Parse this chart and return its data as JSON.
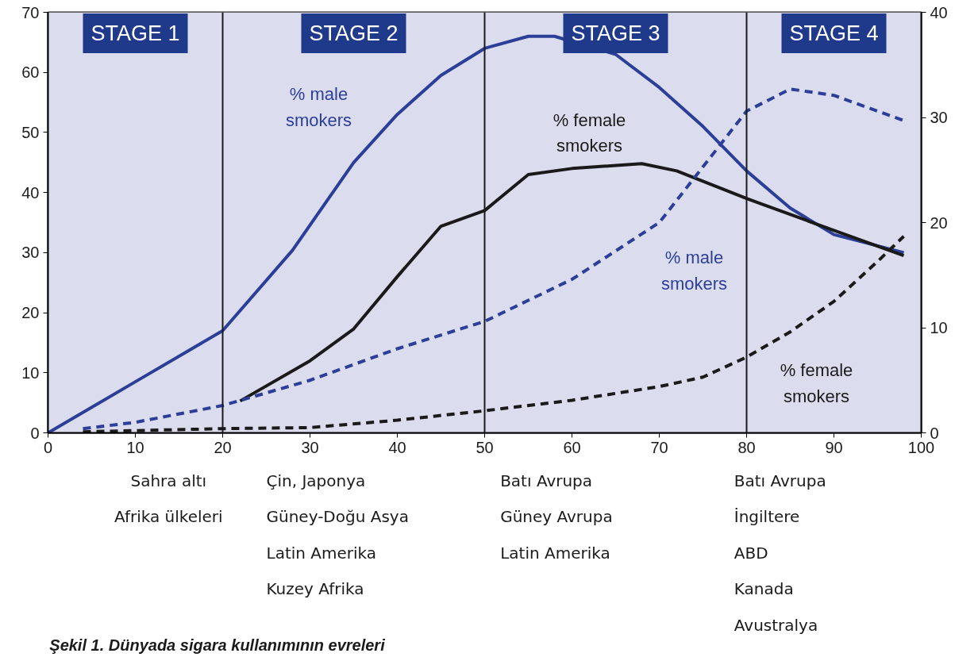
{
  "chart_data": {
    "type": "line",
    "title": "Şekil 1. Dünyada sigara kullanımının evreleri",
    "xlim": [
      0,
      100
    ],
    "xticks": [
      0,
      10,
      20,
      30,
      40,
      50,
      60,
      70,
      80,
      90,
      100
    ],
    "ylim": [
      0,
      70
    ],
    "yticks": [
      0,
      10,
      20,
      30,
      40,
      50,
      60,
      70
    ],
    "y2lim": [
      0,
      40
    ],
    "y2ticks": [
      0,
      10,
      20,
      30,
      40
    ],
    "grid": false,
    "marker": "none",
    "series": [
      {
        "name": "% male\nsmokers",
        "color": "#2b3f98",
        "line_style": "solid",
        "x": [
          0,
          10,
          20,
          28,
          35,
          40,
          45,
          50,
          55,
          58,
          65,
          70,
          75,
          80,
          85,
          90,
          98
        ],
        "values": [
          0,
          8.5,
          17,
          30.4,
          45,
          53,
          59.5,
          64,
          66,
          66,
          63,
          57.5,
          51,
          43.6,
          37.4,
          33,
          30
        ]
      },
      {
        "name": "% female\nsmokers",
        "color": "#1a1a1a",
        "line_style": "solid",
        "x": [
          22,
          30,
          35,
          40,
          45,
          50,
          55,
          60,
          68,
          72,
          80,
          90,
          98
        ],
        "values": [
          5.3,
          12,
          17.3,
          26,
          34.4,
          37,
          43,
          44,
          44.8,
          43.6,
          39,
          33.7,
          29.5
        ]
      },
      {
        "name": "% male\nsmokers",
        "color": "#2b3f98",
        "line_style": "dashed",
        "axis": "y2",
        "x": [
          4,
          10,
          20,
          30,
          40,
          50,
          60,
          70,
          75,
          80,
          85,
          90,
          98
        ],
        "values": [
          0.4,
          1,
          2.6,
          5,
          8,
          10.6,
          14.6,
          20,
          25.3,
          30.6,
          32.7,
          32.1,
          29.7
        ]
      },
      {
        "name": "% female\nsmokers",
        "color": "#1a1a1a",
        "line_style": "dashed",
        "axis": "y2",
        "x": [
          4,
          20,
          30,
          40,
          50,
          60,
          70,
          75,
          80,
          85,
          90,
          95,
          98
        ],
        "values": [
          0.1,
          0.4,
          0.5,
          1.2,
          2.1,
          3.1,
          4.4,
          5.3,
          7.2,
          9.6,
          12.5,
          16.3,
          18.7
        ]
      }
    ],
    "bands": [
      {
        "axis": "x",
        "from": 0,
        "to": 20,
        "label": "STAGE 1",
        "color": "#dcdcef"
      },
      {
        "axis": "x",
        "from": 20,
        "to": 50,
        "label": "STAGE 2",
        "color": "#dcdcef"
      },
      {
        "axis": "x",
        "from": 50,
        "to": 80,
        "label": "STAGE 3",
        "color": "#dcdcef"
      },
      {
        "axis": "x",
        "from": 80,
        "to": 100,
        "label": "STAGE 4",
        "color": "#dcdcef"
      }
    ],
    "ref_lines": [
      {
        "axis": "x",
        "value": 20,
        "color": "#1a1a1a"
      },
      {
        "axis": "x",
        "value": 50,
        "color": "#1a1a1a"
      },
      {
        "axis": "x",
        "value": 80,
        "color": "#1a1a1a"
      }
    ],
    "annotations": [
      "Sahra altı\nAfrika ülkeleri",
      "Çin, Japonya\nGüney-Doğu Asya\nLatin Amerika\nKuzey Afrika",
      "Batı Avrupa\nGüney Avrupa\nLatin Amerika",
      "Batı Avrupa\nİngiltere\nABD\nKanada\nAvustralya"
    ]
  }
}
